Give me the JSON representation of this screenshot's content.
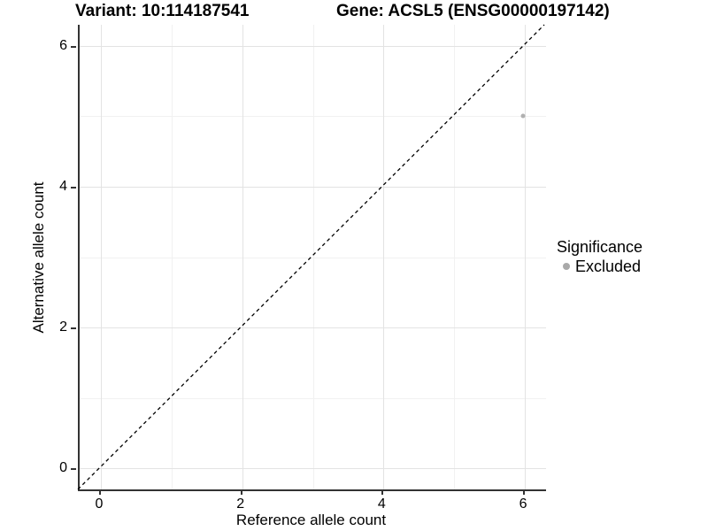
{
  "titles": {
    "variant": "Variant: 10:114187541",
    "gene": "Gene: ACSL5 (ENSG00000197142)"
  },
  "legend": {
    "title": "Significance",
    "items": [
      {
        "label": "Excluded",
        "color": "#a9a9a9"
      }
    ]
  },
  "chart_data": {
    "type": "scatter",
    "title": "Variant: 10:114187541 | Gene: ACSL5 (ENSG00000197142)",
    "xlabel": "Reference allele count",
    "ylabel": "Alternative allele count",
    "xlim": [
      -0.3,
      6.3
    ],
    "ylim": [
      -0.3,
      6.3
    ],
    "x_major_ticks": [
      0,
      2,
      4,
      6
    ],
    "x_minor_ticks": [
      1,
      3,
      5
    ],
    "y_major_ticks": [
      0,
      2,
      4,
      6
    ],
    "y_minor_ticks": [
      1,
      3,
      5
    ],
    "grid": "major+minor",
    "legend_position": "right",
    "series": [
      {
        "name": "Excluded",
        "color": "#b0b0b0",
        "points": [
          {
            "x": 6,
            "y": 5
          }
        ]
      }
    ],
    "reference_line": {
      "type": "identity",
      "style": "dashed",
      "color": "#000000",
      "from": [
        -0.3,
        -0.3
      ],
      "to": [
        6.3,
        6.3
      ]
    }
  },
  "colors": {
    "background": "#ffffff",
    "grid_major": "#e3e3e3",
    "grid_minor": "#f1f1f1",
    "axis_line": "#333333",
    "point": "#b0b0b0",
    "text": "#000000"
  }
}
